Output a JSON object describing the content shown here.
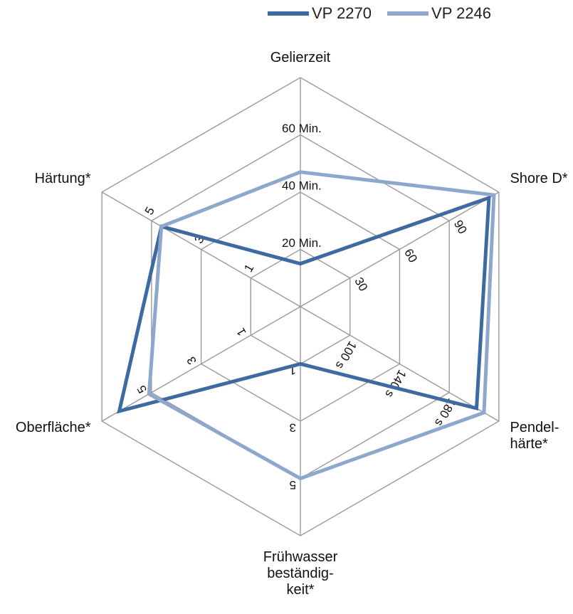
{
  "chart_data": {
    "type": "radar",
    "legend": {
      "placement": "top-right"
    },
    "axes": [
      {
        "label_lines": [
          "Gelierzeit"
        ],
        "ticks": [
          "20 Min.",
          "40 Min.",
          "60 Min."
        ]
      },
      {
        "label_lines": [
          "Shore D*"
        ],
        "ticks": [
          "30",
          "60",
          "90"
        ]
      },
      {
        "label_lines": [
          "Pendel-",
          "härte*"
        ],
        "ticks": [
          "100 s",
          "140 s",
          "180 s"
        ]
      },
      {
        "label_lines": [
          "Frühwasser",
          "beständig-",
          "keit*"
        ],
        "ticks": [
          "1",
          "3",
          "5"
        ]
      },
      {
        "label_lines": [
          "Oberfläche*"
        ],
        "ticks": [
          "1",
          "3",
          "5"
        ]
      },
      {
        "label_lines": [
          "Härtung*"
        ],
        "ticks": [
          "1",
          "3",
          "5"
        ]
      }
    ],
    "levels": 4,
    "series": [
      {
        "name": "VP 2270",
        "color": "#3d6aa0",
        "values": [
          0.75,
          3.8,
          3.55,
          1.0,
          3.65,
          2.8
        ]
      },
      {
        "name": "VP 2246",
        "color": "#8ea7cc",
        "values": [
          2.35,
          3.9,
          3.7,
          3.0,
          3.05,
          2.8
        ]
      }
    ]
  }
}
